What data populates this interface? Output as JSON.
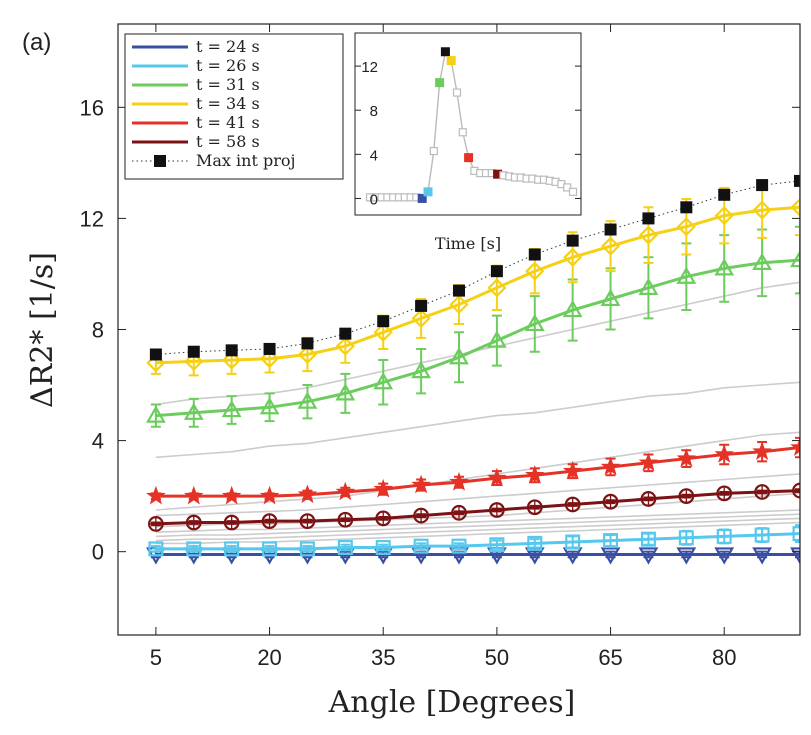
{
  "chart_data": [
    {
      "type": "line",
      "panel_label": "(a)",
      "xlabel": "Angle [Degrees]",
      "ylabel": "ΔR2* [1/s]",
      "xlim": [
        0,
        90
      ],
      "ylim": [
        -3,
        19
      ],
      "xticks": [
        5,
        20,
        35,
        50,
        65,
        80
      ],
      "yticks": [
        0,
        4,
        8,
        12,
        16
      ],
      "x": [
        5,
        10,
        15,
        20,
        25,
        30,
        35,
        40,
        45,
        50,
        55,
        60,
        65,
        70,
        75,
        80,
        85,
        90
      ],
      "series": [
        {
          "name": "t = 24 s",
          "color": "#3a4fa3",
          "marker": "triangle-down",
          "values": [
            -0.1,
            -0.1,
            -0.1,
            -0.1,
            -0.1,
            -0.1,
            -0.1,
            -0.1,
            -0.1,
            -0.1,
            -0.1,
            -0.1,
            -0.1,
            -0.1,
            -0.1,
            -0.1,
            -0.1,
            -0.1
          ],
          "errors": [
            0.1,
            0.1,
            0.1,
            0.1,
            0.1,
            0.1,
            0.1,
            0.1,
            0.1,
            0.1,
            0.1,
            0.1,
            0.1,
            0.1,
            0.1,
            0.1,
            0.1,
            0.1
          ]
        },
        {
          "name": "t = 26 s",
          "color": "#56c8ee",
          "marker": "square",
          "values": [
            0.1,
            0.1,
            0.1,
            0.1,
            0.1,
            0.15,
            0.15,
            0.2,
            0.2,
            0.25,
            0.3,
            0.35,
            0.4,
            0.45,
            0.5,
            0.55,
            0.6,
            0.65
          ],
          "errors": [
            0.1,
            0.1,
            0.1,
            0.1,
            0.1,
            0.1,
            0.1,
            0.1,
            0.1,
            0.15,
            0.15,
            0.2,
            0.2,
            0.2,
            0.25,
            0.25,
            0.25,
            0.3
          ]
        },
        {
          "name": "t = 31 s",
          "color": "#6ccc5e",
          "marker": "triangle-up",
          "values": [
            4.9,
            5.0,
            5.1,
            5.2,
            5.4,
            5.7,
            6.1,
            6.5,
            7.0,
            7.6,
            8.2,
            8.7,
            9.1,
            9.5,
            9.9,
            10.2,
            10.4,
            10.5
          ],
          "errors": [
            0.4,
            0.5,
            0.5,
            0.5,
            0.6,
            0.7,
            0.8,
            0.8,
            0.9,
            0.9,
            1.0,
            1.1,
            1.1,
            1.1,
            1.2,
            1.2,
            1.2,
            1.2
          ]
        },
        {
          "name": "t = 34 s",
          "color": "#f5d015",
          "marker": "diamond",
          "values": [
            6.8,
            6.85,
            6.9,
            6.95,
            7.1,
            7.4,
            7.9,
            8.4,
            8.9,
            9.5,
            10.1,
            10.6,
            11.0,
            11.4,
            11.7,
            12.1,
            12.3,
            12.4
          ],
          "errors": [
            0.4,
            0.5,
            0.5,
            0.5,
            0.6,
            0.6,
            0.6,
            0.7,
            0.7,
            0.8,
            0.8,
            0.9,
            0.9,
            1.0,
            1.0,
            1.0,
            1.0,
            1.0
          ]
        },
        {
          "name": "t = 41 s",
          "color": "#e53226",
          "marker": "star",
          "values": [
            2.0,
            2.0,
            2.0,
            2.0,
            2.05,
            2.15,
            2.25,
            2.4,
            2.5,
            2.65,
            2.75,
            2.9,
            3.05,
            3.2,
            3.35,
            3.5,
            3.6,
            3.75
          ],
          "errors": [
            0.1,
            0.1,
            0.1,
            0.1,
            0.15,
            0.15,
            0.2,
            0.2,
            0.2,
            0.25,
            0.25,
            0.25,
            0.3,
            0.3,
            0.3,
            0.35,
            0.35,
            0.35
          ]
        },
        {
          "name": "t = 58 s",
          "color": "#7d1214",
          "marker": "circle-plus",
          "values": [
            1.0,
            1.05,
            1.05,
            1.1,
            1.1,
            1.15,
            1.2,
            1.3,
            1.4,
            1.5,
            1.6,
            1.7,
            1.8,
            1.9,
            2.0,
            2.1,
            2.15,
            2.2
          ],
          "errors": [
            0.05,
            0.05,
            0.05,
            0.05,
            0.05,
            0.05,
            0.05,
            0.05,
            0.05,
            0.05,
            0.05,
            0.05,
            0.05,
            0.05,
            0.05,
            0.05,
            0.05,
            0.05
          ]
        },
        {
          "name": "Max int proj",
          "color": "#111111",
          "marker": "filled-square",
          "line": "dotted",
          "values": [
            7.1,
            7.2,
            7.25,
            7.3,
            7.5,
            7.85,
            8.3,
            8.85,
            9.4,
            10.1,
            10.7,
            11.2,
            11.6,
            12.0,
            12.4,
            12.85,
            13.2,
            13.35
          ]
        }
      ],
      "background_curves": [
        {
          "color": "#cccccc",
          "values": [
            3.4,
            3.5,
            3.6,
            3.8,
            3.9,
            4.1,
            4.3,
            4.5,
            4.7,
            4.9,
            5.0,
            5.2,
            5.4,
            5.6,
            5.7,
            5.9,
            6.0,
            6.1
          ]
        },
        {
          "color": "#cccccc",
          "values": [
            5.3,
            5.5,
            5.6,
            5.7,
            5.9,
            6.2,
            6.5,
            6.8,
            7.1,
            7.4,
            7.7,
            8.0,
            8.3,
            8.6,
            8.9,
            9.2,
            9.5,
            9.7
          ]
        },
        {
          "color": "#cccccc",
          "values": [
            1.5,
            1.6,
            1.7,
            1.8,
            1.9,
            2.0,
            2.2,
            2.4,
            2.6,
            2.8,
            3.0,
            3.2,
            3.4,
            3.6,
            3.8,
            4.0,
            4.2,
            4.3
          ]
        },
        {
          "color": "#cccccc",
          "values": [
            1.3,
            1.35,
            1.4,
            1.45,
            1.5,
            1.6,
            1.7,
            1.8,
            1.9,
            2.0,
            2.1,
            2.2,
            2.3,
            2.4,
            2.5,
            2.6,
            2.7,
            2.8
          ]
        },
        {
          "color": "#cccccc",
          "values": [
            0.9,
            0.95,
            1.0,
            1.0,
            1.05,
            1.1,
            1.15,
            1.2,
            1.25,
            1.3,
            1.4,
            1.5,
            1.6,
            1.7,
            1.8,
            1.9,
            2.0,
            2.1
          ]
        },
        {
          "color": "#cccccc",
          "values": [
            0.7,
            0.75,
            0.8,
            0.8,
            0.85,
            0.9,
            0.95,
            1.0,
            1.05,
            1.1,
            1.15,
            1.2,
            1.25,
            1.3,
            1.35,
            1.4,
            1.45,
            1.5
          ]
        },
        {
          "color": "#cccccc",
          "values": [
            0.55,
            0.6,
            0.6,
            0.65,
            0.7,
            0.75,
            0.8,
            0.85,
            0.9,
            0.95,
            1.0,
            1.05,
            1.1,
            1.15,
            1.2,
            1.25,
            1.3,
            1.35
          ]
        },
        {
          "color": "#cccccc",
          "values": [
            0.4,
            0.45,
            0.45,
            0.5,
            0.55,
            0.6,
            0.65,
            0.7,
            0.75,
            0.8,
            0.85,
            0.9,
            0.95,
            1.0,
            1.05,
            1.1,
            1.15,
            1.2
          ]
        },
        {
          "color": "#cccccc",
          "values": [
            0.3,
            0.3,
            0.35,
            0.35,
            0.4,
            0.45,
            0.5,
            0.55,
            0.6,
            0.65,
            0.7,
            0.75,
            0.8,
            0.85,
            0.9,
            0.95,
            1.0,
            1.05
          ]
        }
      ]
    },
    {
      "type": "line",
      "role": "inset",
      "xlabel": "Time [s]",
      "ylabel": "",
      "ylim": [
        -1.5,
        15
      ],
      "yticks": [
        0,
        4,
        8,
        12
      ],
      "values": [
        0.1,
        0.1,
        0.1,
        0.1,
        0.1,
        0.1,
        0.1,
        0.1,
        0.1,
        0.0,
        0.6,
        4.3,
        10.5,
        13.3,
        12.5,
        9.6,
        6.0,
        3.7,
        2.5,
        2.3,
        2.3,
        2.3,
        2.2,
        2.1,
        2.0,
        1.9,
        1.9,
        1.8,
        1.8,
        1.7,
        1.7,
        1.6,
        1.5,
        1.3,
        1.0,
        0.6
      ],
      "highlights": [
        {
          "index": 9,
          "color": "#3a4fa3"
        },
        {
          "index": 10,
          "color": "#56c8ee"
        },
        {
          "index": 12,
          "color": "#6ccc5e"
        },
        {
          "index": 13,
          "color": "#111111"
        },
        {
          "index": 14,
          "color": "#f5d015"
        },
        {
          "index": 17,
          "color": "#e53226"
        },
        {
          "index": 22,
          "color": "#7d1214"
        }
      ]
    }
  ]
}
